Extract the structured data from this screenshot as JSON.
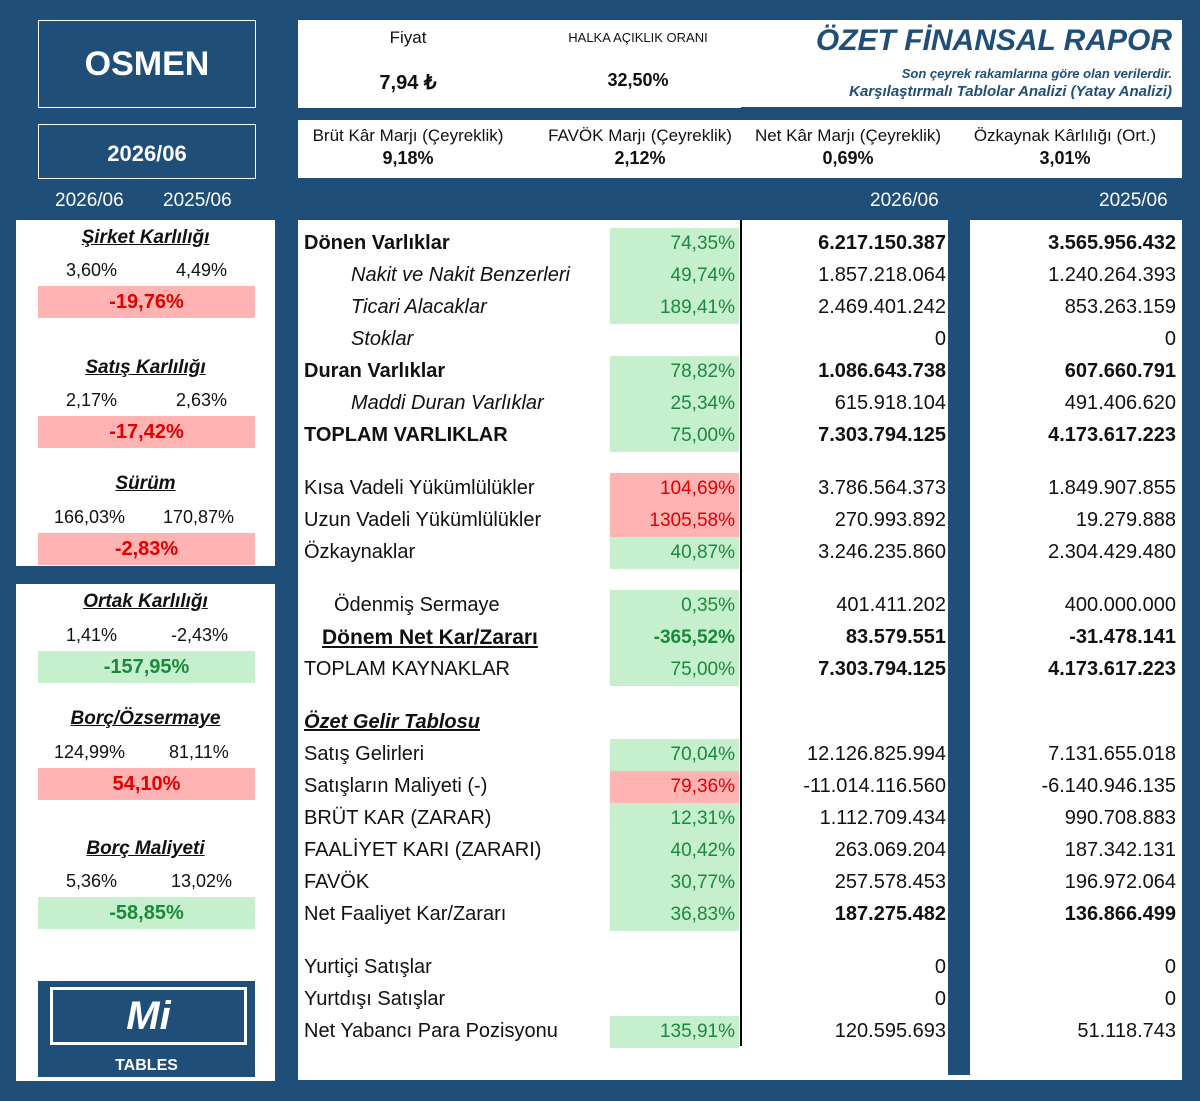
{
  "company": "OSMEN",
  "period": "2026/06",
  "header": {
    "price_label": "Fiyat",
    "price_value": "7,94 ₺",
    "float_label": "HALKA AÇIKLIK ORANI",
    "float_value": "32,50%",
    "title": "ÖZET FİNANSAL RAPOR",
    "subtitle1": "Son çeyrek rakamlarına göre olan verilerdir.",
    "subtitle2": "Karşılaştırmalı Tablolar Analizi (Yatay Analizi)"
  },
  "ratios": [
    {
      "label": "Brüt Kâr Marjı (Çeyreklik)",
      "value": "9,18%"
    },
    {
      "label": "FAVÖK Marjı (Çeyreklik)",
      "value": "2,12%"
    },
    {
      "label": "Net Kâr Marjı (Çeyreklik)",
      "value": "0,69%"
    },
    {
      "label": "Özkaynak Kârlılığı (Ort.)",
      "value": "3,01%"
    }
  ],
  "years": {
    "current": "2026/06",
    "previous": "2025/06"
  },
  "left_metrics": [
    {
      "title": "Şirket Karlılığı",
      "cur": "3,60%",
      "prev": "4,49%",
      "change": "-19,76%",
      "status": "bad"
    },
    {
      "title": "Satış Karlılığı",
      "cur": "2,17%",
      "prev": "2,63%",
      "change": "-17,42%",
      "status": "bad"
    },
    {
      "title": "Sürüm",
      "cur": "166,03%",
      "prev": "170,87%",
      "change": "-2,83%",
      "status": "bad"
    },
    {
      "title": "Ortak Karlılığı",
      "cur": "1,41%",
      "prev": "-2,43%",
      "change": "-157,95%",
      "status": "good"
    },
    {
      "title": "Borç/Özsermaye",
      "cur": "124,99%",
      "prev": "81,11%",
      "change": "54,10%",
      "status": "bad"
    },
    {
      "title": "Borç Maliyeti",
      "cur": "5,36%",
      "prev": "13,02%",
      "change": "-58,85%",
      "status": "good"
    }
  ],
  "rows": [
    {
      "label": "Dönen Varlıklar",
      "pct": "74,35%",
      "pc": "g",
      "v1": "6.217.150.387",
      "v2": "3.565.956.432",
      "style": "bold"
    },
    {
      "label": "Nakit ve Nakit Benzerleri",
      "pct": "49,74%",
      "pc": "g",
      "v1": "1.857.218.064",
      "v2": "1.240.264.393",
      "style": "italic"
    },
    {
      "label": "Ticari Alacaklar",
      "pct": "189,41%",
      "pc": "g",
      "v1": "2.469.401.242",
      "v2": "853.263.159",
      "style": "italic"
    },
    {
      "label": "Stoklar",
      "pct": "",
      "pc": "",
      "v1": "0",
      "v2": "0",
      "style": "italic"
    },
    {
      "label": "Duran Varlıklar",
      "pct": "78,82%",
      "pc": "g",
      "v1": "1.086.643.738",
      "v2": "607.660.791",
      "style": "bold"
    },
    {
      "label": "Maddi Duran Varlıklar",
      "pct": "25,34%",
      "pc": "g",
      "v1": "615.918.104",
      "v2": "491.406.620",
      "style": "italic"
    },
    {
      "label": "TOPLAM VARLIKLAR",
      "pct": "75,00%",
      "pc": "g",
      "v1": "7.303.794.125",
      "v2": "4.173.617.223",
      "style": "bold"
    },
    {
      "label": "Kısa Vadeli Yükümlülükler",
      "pct": "104,69%",
      "pc": "r",
      "v1": "3.786.564.373",
      "v2": "1.849.907.855",
      "style": ""
    },
    {
      "label": "Uzun Vadeli Yükümlülükler",
      "pct": "1305,58%",
      "pc": "r",
      "v1": "270.993.892",
      "v2": "19.279.888",
      "style": ""
    },
    {
      "label": "Özkaynaklar",
      "pct": "40,87%",
      "pc": "g",
      "v1": "3.246.235.860",
      "v2": "2.304.429.480",
      "style": ""
    },
    {
      "label": "Ödenmiş Sermaye",
      "pct": "0,35%",
      "pc": "g",
      "v1": "401.411.202",
      "v2": "400.000.000",
      "style": ""
    },
    {
      "label": "Dönem Net Kar/Zararı",
      "pct": "-365,52%",
      "pc": "g",
      "v1": "83.579.551",
      "v2": "-31.478.141",
      "style": "boldul"
    },
    {
      "label": "TOPLAM KAYNAKLAR",
      "pct": "75,00%",
      "pc": "g",
      "v1": "7.303.794.125",
      "v2": "4.173.617.223",
      "style": "valbold"
    },
    {
      "label": "Özet Gelir Tablosu",
      "pct": "",
      "pc": "",
      "v1": "",
      "v2": "",
      "style": "section"
    },
    {
      "label": "Satış Gelirleri",
      "pct": "70,04%",
      "pc": "g",
      "v1": "12.126.825.994",
      "v2": "7.131.655.018",
      "style": ""
    },
    {
      "label": "Satışların Maliyeti (-)",
      "pct": "79,36%",
      "pc": "r",
      "v1": "-11.014.116.560",
      "v2": "-6.140.946.135",
      "style": ""
    },
    {
      "label": "BRÜT KAR (ZARAR)",
      "pct": "12,31%",
      "pc": "g",
      "v1": "1.112.709.434",
      "v2": "990.708.883",
      "style": ""
    },
    {
      "label": "FAALİYET KARI (ZARARI)",
      "pct": "40,42%",
      "pc": "g",
      "v1": "263.069.204",
      "v2": "187.342.131",
      "style": ""
    },
    {
      "label": "FAVÖK",
      "pct": "30,77%",
      "pc": "g",
      "v1": "257.578.453",
      "v2": "196.972.064",
      "style": ""
    },
    {
      "label": "Net Faaliyet Kar/Zararı",
      "pct": "36,83%",
      "pc": "g",
      "v1": "187.275.482",
      "v2": "136.866.499",
      "style": "valbold"
    },
    {
      "label": "Yurtiçi Satışlar",
      "pct": "",
      "pc": "",
      "v1": "0",
      "v2": "0",
      "style": ""
    },
    {
      "label": "Yurtdışı Satışlar",
      "pct": "",
      "pc": "",
      "v1": "0",
      "v2": "0",
      "style": ""
    },
    {
      "label": "Net Yabancı Para Pozisyonu",
      "pct": "135,91%",
      "pc": "g",
      "v1": "120.595.693",
      "v2": "51.118.743",
      "style": ""
    }
  ],
  "logo": {
    "mark": "Mi",
    "text": "TABLES"
  },
  "colors": {
    "navy": "#1f4e79",
    "green_bg": "#c6efce",
    "green_text": "#1a8a3a",
    "red_bg": "#ffb3b3",
    "red_text": "#e00000"
  }
}
